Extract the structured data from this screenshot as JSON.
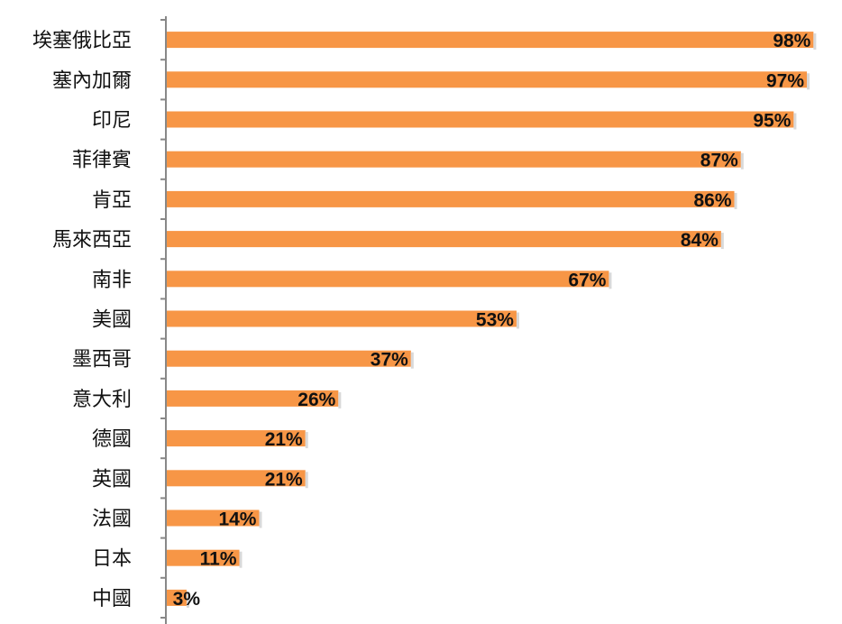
{
  "chart_data": {
    "type": "bar",
    "orientation": "horizontal",
    "categories": [
      "埃塞俄比亞",
      "塞內加爾",
      "印尼",
      "菲律賓",
      "肯亞",
      "馬來西亞",
      "南非",
      "美國",
      "墨西哥",
      "意大利",
      "德國",
      "英國",
      "法國",
      "日本",
      "中國"
    ],
    "values": [
      98,
      97,
      95,
      87,
      86,
      84,
      67,
      53,
      37,
      26,
      21,
      21,
      14,
      11,
      3
    ],
    "value_labels": [
      "98%",
      "97%",
      "95%",
      "87%",
      "86%",
      "84%",
      "67%",
      "53%",
      "37%",
      "26%",
      "21%",
      "21%",
      "14%",
      "11%",
      "3%"
    ],
    "xlim": [
      0,
      100
    ],
    "grid": false,
    "legend": "none",
    "bar_color": "#F79646"
  }
}
